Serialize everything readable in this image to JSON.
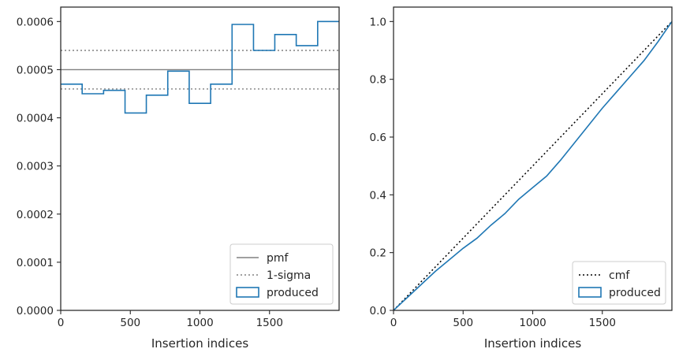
{
  "chart_data": [
    {
      "type": "histogram-step",
      "title": "",
      "xlabel": "Insertion indices",
      "ylabel": "",
      "xlim": [
        0,
        2000
      ],
      "ylim": [
        0,
        0.00063
      ],
      "xticks": [
        0,
        500,
        1000,
        1500
      ],
      "xtick_labels": [
        "0",
        "500",
        "1000",
        "1500"
      ],
      "yticks": [
        0,
        0.0001,
        0.0002,
        0.0003,
        0.0004,
        0.0005,
        0.0006
      ],
      "ytick_labels": [
        "0.0000",
        "0.0001",
        "0.0002",
        "0.0003",
        "0.0004",
        "0.0005",
        "0.0006"
      ],
      "bin_edges": [
        0,
        154,
        308,
        462,
        615,
        769,
        923,
        1077,
        1231,
        1385,
        1538,
        1692,
        1846,
        2000
      ],
      "series": [
        {
          "name": "produced",
          "style": "step",
          "color": "#1f77b4",
          "values": [
            0.00047,
            0.00045,
            0.000457,
            0.00041,
            0.000447,
            0.000497,
            0.00043,
            0.00047,
            0.000594,
            0.00054,
            0.000573,
            0.00055,
            0.0006
          ]
        }
      ],
      "hlines": [
        {
          "name": "pmf",
          "y": 0.0005,
          "style": "solid",
          "color": "#808080"
        },
        {
          "name": "1-sigma",
          "y": 0.00054,
          "style": "dotted",
          "color": "#808080"
        },
        {
          "name": "1-sigma",
          "y": 0.00046,
          "style": "dotted",
          "color": "#808080"
        }
      ],
      "legend": {
        "placement": "lower-right",
        "entries": [
          "pmf",
          "1-sigma",
          "produced"
        ]
      }
    },
    {
      "type": "line",
      "title": "",
      "xlabel": "Insertion indices",
      "ylabel": "",
      "xlim": [
        0,
        2000
      ],
      "ylim": [
        0,
        1.05
      ],
      "xticks": [
        0,
        500,
        1000,
        1500
      ],
      "xtick_labels": [
        "0",
        "500",
        "1000",
        "1500"
      ],
      "yticks": [
        0,
        0.2,
        0.4,
        0.6,
        0.8,
        1.0
      ],
      "ytick_labels": [
        "0.0",
        "0.2",
        "0.4",
        "0.6",
        "0.8",
        "1.0"
      ],
      "series": [
        {
          "name": "cmf",
          "style": "dotted",
          "color": "#000000",
          "x": [
            0,
            2000
          ],
          "y": [
            0,
            1.0
          ]
        },
        {
          "name": "produced",
          "style": "step",
          "color": "#1f77b4",
          "x": [
            0,
            100,
            200,
            300,
            400,
            500,
            600,
            700,
            800,
            900,
            1000,
            1100,
            1200,
            1300,
            1400,
            1500,
            1600,
            1700,
            1800,
            1900,
            2000
          ],
          "y": [
            0,
            0.045,
            0.09,
            0.135,
            0.175,
            0.215,
            0.25,
            0.295,
            0.335,
            0.385,
            0.425,
            0.465,
            0.52,
            0.58,
            0.64,
            0.7,
            0.755,
            0.81,
            0.865,
            0.93,
            1.0
          ]
        }
      ],
      "legend": {
        "placement": "lower-right",
        "entries": [
          "cmf",
          "produced"
        ]
      }
    }
  ]
}
